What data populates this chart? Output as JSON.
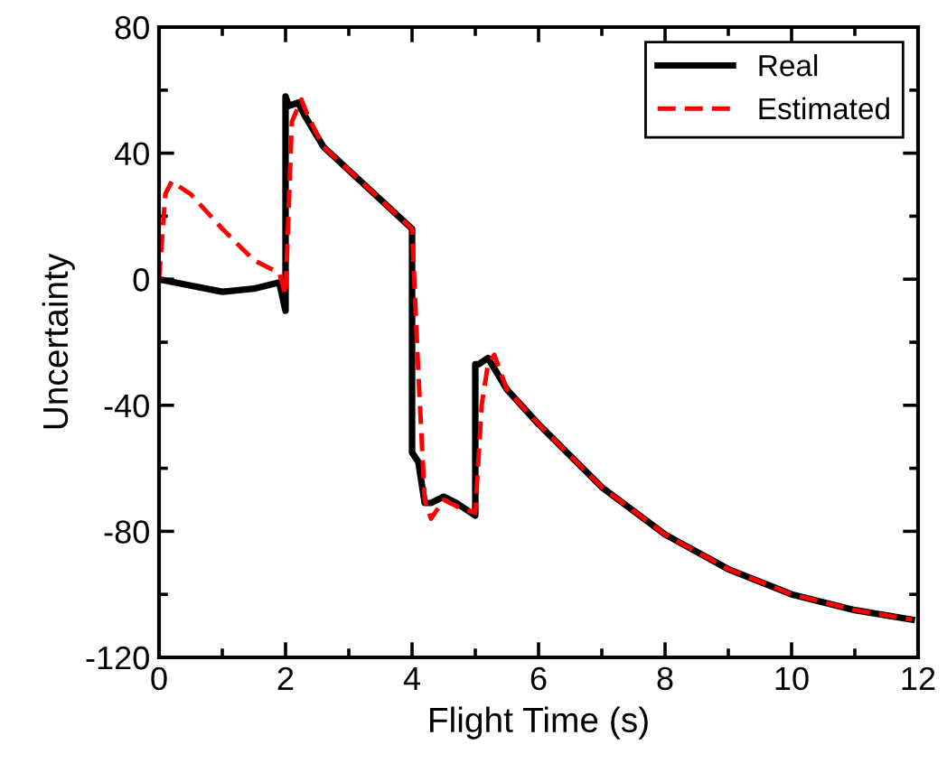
{
  "chart_data": {
    "type": "line",
    "xlabel": "Flight Time (s)",
    "ylabel": "Uncertainty",
    "xlim": [
      0,
      12
    ],
    "xticks": [
      0,
      2,
      4,
      6,
      8,
      10,
      12
    ],
    "ylim": [
      -120,
      80
    ],
    "yticks": [
      -120,
      -80,
      -40,
      0,
      40,
      80
    ],
    "grid": false,
    "legend": "top right",
    "marker": "none",
    "series": [
      {
        "name": "Real",
        "color": "#000000",
        "line_style": "solid",
        "x": [
          0,
          0.5,
          1.0,
          1.5,
          1.9,
          2.0,
          2.0,
          2.05,
          2.2,
          2.3,
          2.6,
          4.0,
          4.0,
          4.1,
          4.2,
          4.3,
          4.5,
          4.7,
          5.0,
          5.0,
          5.05,
          5.2,
          5.5,
          6,
          7,
          8,
          9,
          10,
          11,
          11.9
        ],
        "values": [
          0,
          -2,
          -4,
          -3,
          -1,
          -10,
          58,
          55,
          56,
          52,
          42,
          16,
          -55,
          -58,
          -71,
          -71,
          -69,
          -71,
          -75,
          -27,
          -27,
          -25,
          -35,
          -46,
          -66,
          -81,
          -92,
          -100,
          -105,
          -108
        ]
      },
      {
        "name": "Estimated",
        "color": "#ff0000",
        "line_style": "dashed",
        "x": [
          0,
          0.1,
          0.2,
          0.5,
          1.0,
          1.5,
          1.9,
          2.0,
          2.1,
          2.25,
          2.35,
          2.6,
          4.0,
          4.1,
          4.2,
          4.3,
          4.5,
          4.8,
          5.0,
          5.1,
          5.2,
          5.3,
          5.5,
          6,
          7,
          8,
          9,
          10,
          11,
          11.9
        ],
        "values": [
          0,
          27,
          31,
          27,
          16,
          6,
          2,
          -5,
          50,
          57,
          52,
          42,
          16,
          -30,
          -70,
          -76,
          -70,
          -73,
          -74,
          -40,
          -27,
          -24,
          -35,
          -46,
          -66,
          -81,
          -92,
          -100,
          -105,
          -108
        ]
      }
    ]
  }
}
